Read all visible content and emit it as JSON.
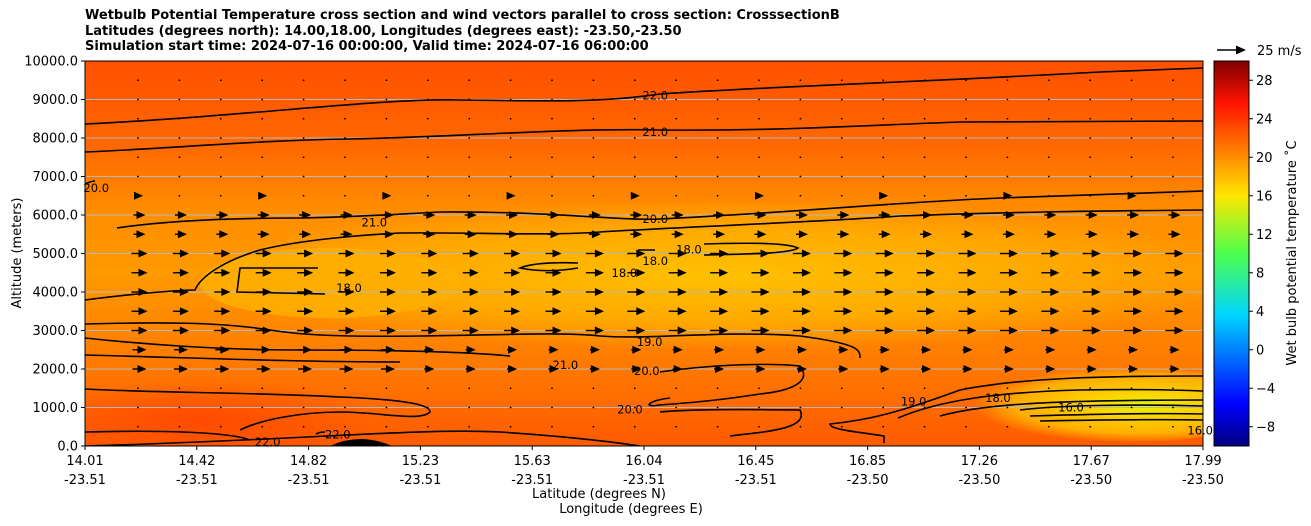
{
  "chart_data": {
    "type": "contour",
    "title_lines": [
      "Wetbulb Potential Temperature cross section and wind vectors parallel to cross section: CrosssectionB",
      "Latitudes (degrees north): 14.00,18.00, Longitudes (degrees east): -23.50,-23.50",
      "Simulation start time: 2024-07-16 00:00:00, Valid time: 2024-07-16 06:00:00"
    ],
    "xlabel": "Latitude (degrees N)",
    "xlabel2": "Longitude (degrees E)",
    "ylabel": "Altitude (meters)",
    "x_ticks": [
      {
        "lat": "14.01",
        "lon": "-23.51"
      },
      {
        "lat": "14.42",
        "lon": "-23.51"
      },
      {
        "lat": "14.82",
        "lon": "-23.51"
      },
      {
        "lat": "15.23",
        "lon": "-23.51"
      },
      {
        "lat": "15.63",
        "lon": "-23.51"
      },
      {
        "lat": "16.04",
        "lon": "-23.51"
      },
      {
        "lat": "16.45",
        "lon": "-23.51"
      },
      {
        "lat": "16.85",
        "lon": "-23.50"
      },
      {
        "lat": "17.26",
        "lon": "-23.50"
      },
      {
        "lat": "17.67",
        "lon": "-23.50"
      },
      {
        "lat": "17.99",
        "lon": "-23.50"
      }
    ],
    "y_ticks": [
      "0.0",
      "1000.0",
      "2000.0",
      "3000.0",
      "4000.0",
      "5000.0",
      "6000.0",
      "7000.0",
      "8000.0",
      "9000.0",
      "10000.0"
    ],
    "ylim": [
      0,
      10000
    ],
    "grid": "horizontal",
    "colorbar": {
      "label": "Wet bulb potential temperature ˚C",
      "ticks": [
        "28",
        "24",
        "20",
        "16",
        "12",
        "8",
        "4",
        "0",
        "−4",
        "−8"
      ],
      "range": [
        -10,
        30
      ],
      "colormap": "jet"
    },
    "quiver_key": {
      "label": "25 m/s"
    },
    "contour_labels": [
      {
        "text": "22.0",
        "x": 16.04,
        "y": 9100
      },
      {
        "text": "21.0",
        "x": 16.04,
        "y": 8150
      },
      {
        "text": "20.0",
        "x": 14.05,
        "y": 6700
      },
      {
        "text": "20.0",
        "x": 16.04,
        "y": 5900
      },
      {
        "text": "21.0",
        "x": 15.04,
        "y": 5800
      },
      {
        "text": "18.0",
        "x": 14.95,
        "y": 4100
      },
      {
        "text": "18.0",
        "x": 15.93,
        "y": 4500
      },
      {
        "text": "18.0",
        "x": 16.04,
        "y": 4800
      },
      {
        "text": "18.0",
        "x": 16.16,
        "y": 5100
      },
      {
        "text": "19.0",
        "x": 16.02,
        "y": 2700
      },
      {
        "text": "21.0",
        "x": 15.72,
        "y": 2100
      },
      {
        "text": "20.0",
        "x": 16.01,
        "y": 1950
      },
      {
        "text": "20.0",
        "x": 15.95,
        "y": 950
      },
      {
        "text": "19.0",
        "x": 16.96,
        "y": 1150
      },
      {
        "text": "18.0",
        "x": 17.26,
        "y": 1250
      },
      {
        "text": "16.0",
        "x": 17.52,
        "y": 1000
      },
      {
        "text": "22.0",
        "x": 14.66,
        "y": 100
      },
      {
        "text": "22.0",
        "x": 14.91,
        "y": 300
      },
      {
        "text": "16.0",
        "x": 17.98,
        "y": 400
      }
    ]
  }
}
